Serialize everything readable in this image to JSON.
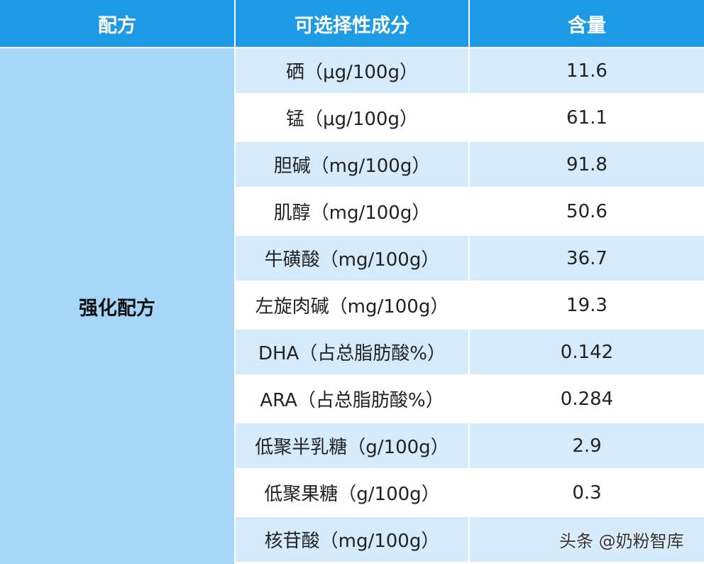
{
  "table": {
    "header": [
      "配方",
      "可选择性成分",
      "含量"
    ],
    "group": "强化配方",
    "rows": [
      [
        "硒（μg/100g）",
        "11.6"
      ],
      [
        "锰（μg/100g）",
        "61.1"
      ],
      [
        "胆碱（mg/100g）",
        "91.8"
      ],
      [
        "肌醇（mg/100g）",
        "50.6"
      ],
      [
        "牛磺酸（mg/100g）",
        "36.7"
      ],
      [
        "左旋肉碱（mg/100g）",
        "19.3"
      ],
      [
        "DHA（占总脂肪酸%）",
        "0.142"
      ],
      [
        "ARA（占总脂肪酸%）",
        "0.284"
      ],
      [
        "低聚半乳糖（g/100g）",
        "2.9"
      ],
      [
        "低聚果糖（g/100g）",
        "0.3"
      ],
      [
        "核苷酸（mg/100g）"
      ]
    ]
  },
  "watermark": "头条 @奶粉智库"
}
